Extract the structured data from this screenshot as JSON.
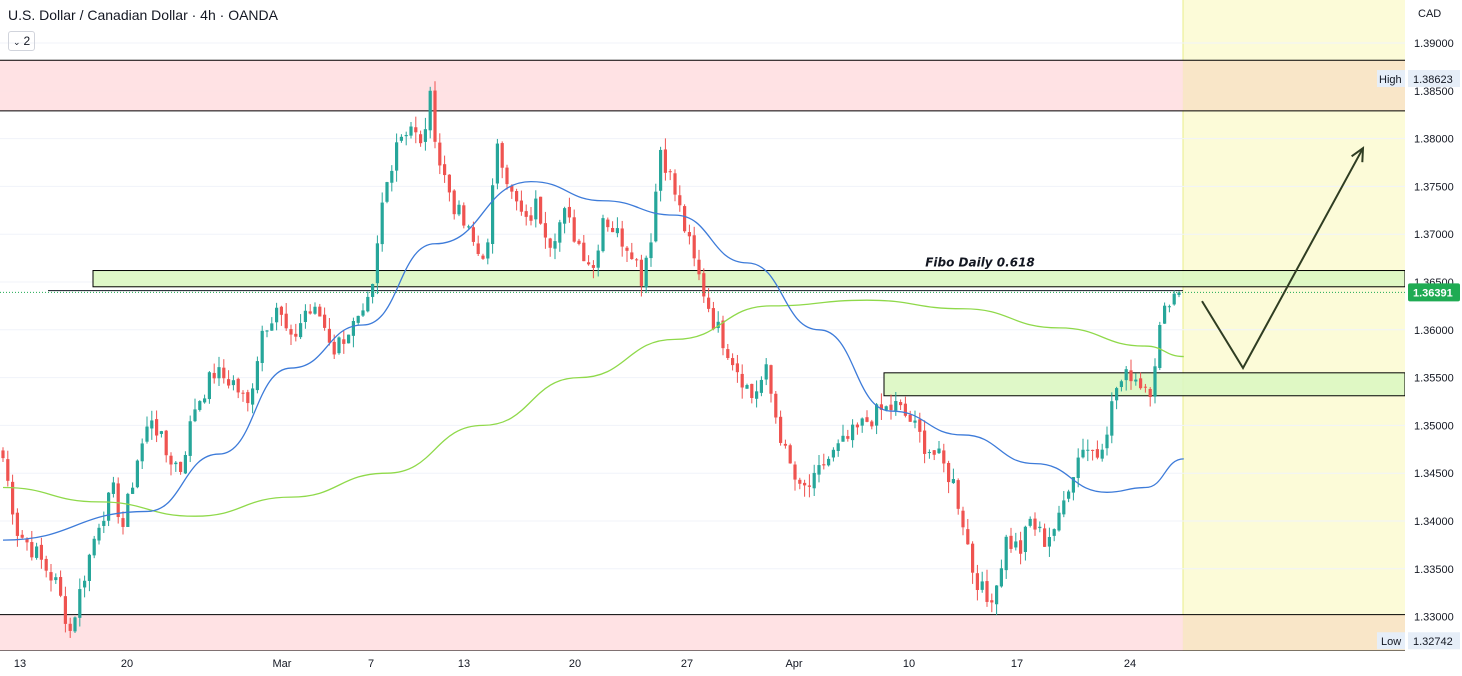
{
  "header": {
    "symbol_title": "U.S. Dollar / Canadian Dollar · 4h · OANDA",
    "indicator_badge": "2"
  },
  "colors": {
    "up": "#26a69a",
    "down": "#ef5350",
    "ma_fast": "#3d7bd9",
    "ma_slow": "#8fd94a",
    "zone_red": "#ffdfe1",
    "zone_green": "#dcf7c2",
    "future_bg": "#fcfbd8",
    "price_label": "#1fab53"
  },
  "chart_data": {
    "type": "candlestick",
    "currency": "CAD",
    "ylim": [
      1.3264,
      1.3945
    ],
    "y_ticks": [
      "1.33000",
      "1.33500",
      "1.34000",
      "1.34500",
      "1.35000",
      "1.35500",
      "1.36000",
      "1.36500",
      "1.37000",
      "1.37500",
      "1.38000",
      "1.38500",
      "1.39000"
    ],
    "x_ticks": [
      "13",
      "20",
      "Mar",
      "7",
      "13",
      "20",
      "27",
      "Apr",
      "10",
      "17",
      "24"
    ],
    "current_price": "1.36391",
    "high_label": "High",
    "high_value": "1.38623",
    "low_label": "Low",
    "low_value": "1.32742",
    "annotation": "Fibo Daily 0.618",
    "zones": [
      {
        "kind": "resistance",
        "from": 1.3829,
        "to": 1.3882
      },
      {
        "kind": "support",
        "from": 1.3264,
        "to": 1.3302
      },
      {
        "kind": "fibo",
        "from": 1.3645,
        "to": 1.3662
      },
      {
        "kind": "demand",
        "from": 1.3531,
        "to": 1.3555
      }
    ],
    "waypoints": [
      [
        0,
        1.3466
      ],
      [
        3,
        1.339
      ],
      [
        7,
        1.3365
      ],
      [
        11,
        1.3335
      ],
      [
        14,
        1.3285
      ],
      [
        17,
        1.3345
      ],
      [
        20,
        1.34
      ],
      [
        23,
        1.343
      ],
      [
        25,
        1.3395
      ],
      [
        28,
        1.3465
      ],
      [
        31,
        1.351
      ],
      [
        34,
        1.347
      ],
      [
        37,
        1.3455
      ],
      [
        40,
        1.352
      ],
      [
        44,
        1.3555
      ],
      [
        48,
        1.3545
      ],
      [
        51,
        1.352
      ],
      [
        54,
        1.36
      ],
      [
        57,
        1.3625
      ],
      [
        60,
        1.3585
      ],
      [
        63,
        1.362
      ],
      [
        66,
        1.3615
      ],
      [
        69,
        1.358
      ],
      [
        72,
        1.36
      ],
      [
        75,
        1.361
      ],
      [
        77,
        1.364
      ],
      [
        79,
        1.373
      ],
      [
        82,
        1.38
      ],
      [
        85,
        1.3815
      ],
      [
        87,
        1.379
      ],
      [
        89,
        1.384
      ],
      [
        91,
        1.3775
      ],
      [
        94,
        1.373
      ],
      [
        96,
        1.371
      ],
      [
        99,
        1.368
      ],
      [
        101,
        1.3685
      ],
      [
        103,
        1.38
      ],
      [
        106,
        1.374
      ],
      [
        109,
        1.371
      ],
      [
        111,
        1.373
      ],
      [
        114,
        1.3695
      ],
      [
        117,
        1.372
      ],
      [
        120,
        1.369
      ],
      [
        123,
        1.3665
      ],
      [
        125,
        1.372
      ],
      [
        128,
        1.37
      ],
      [
        131,
        1.3685
      ],
      [
        133,
        1.3655
      ],
      [
        135,
        1.37
      ],
      [
        137,
        1.379
      ],
      [
        139,
        1.376
      ],
      [
        141,
        1.3725
      ],
      [
        144,
        1.367
      ],
      [
        146,
        1.364
      ],
      [
        148,
        1.361
      ],
      [
        150,
        1.359
      ],
      [
        153,
        1.356
      ],
      [
        156,
        1.353
      ],
      [
        159,
        1.3555
      ],
      [
        161,
        1.351
      ],
      [
        163,
        1.347
      ],
      [
        166,
        1.343
      ],
      [
        169,
        1.344
      ],
      [
        171,
        1.346
      ],
      [
        174,
        1.3475
      ],
      [
        177,
        1.349
      ],
      [
        180,
        1.3505
      ],
      [
        183,
        1.3515
      ],
      [
        186,
        1.352
      ],
      [
        189,
        1.3505
      ],
      [
        192,
        1.348
      ],
      [
        195,
        1.3465
      ],
      [
        198,
        1.344
      ],
      [
        200,
        1.34
      ],
      [
        202,
        1.335
      ],
      [
        205,
        1.3315
      ],
      [
        207,
        1.3335
      ],
      [
        209,
        1.338
      ],
      [
        212,
        1.337
      ],
      [
        214,
        1.34
      ],
      [
        217,
        1.338
      ],
      [
        220,
        1.34
      ],
      [
        222,
        1.344
      ],
      [
        225,
        1.348
      ],
      [
        228,
        1.347
      ],
      [
        230,
        1.35
      ],
      [
        232,
        1.354
      ],
      [
        235,
        1.3555
      ],
      [
        237,
        1.3545
      ],
      [
        239,
        1.354
      ],
      [
        241,
        1.36
      ],
      [
        243,
        1.3635
      ],
      [
        245,
        1.3639
      ]
    ],
    "ma_fast_values": [
      [
        0,
        1.338
      ],
      [
        30,
        1.341
      ],
      [
        45,
        1.347
      ],
      [
        60,
        1.356
      ],
      [
        75,
        1.3605
      ],
      [
        90,
        1.369
      ],
      [
        110,
        1.3755
      ],
      [
        125,
        1.3735
      ],
      [
        140,
        1.372
      ],
      [
        155,
        1.367
      ],
      [
        170,
        1.36
      ],
      [
        185,
        1.3515
      ],
      [
        200,
        1.349
      ],
      [
        215,
        1.346
      ],
      [
        230,
        1.343
      ],
      [
        238,
        1.3435
      ],
      [
        246,
        1.3465
      ]
    ],
    "ma_slow_values": [
      [
        0,
        1.3435
      ],
      [
        20,
        1.342
      ],
      [
        40,
        1.3405
      ],
      [
        60,
        1.3425
      ],
      [
        80,
        1.345
      ],
      [
        100,
        1.35
      ],
      [
        120,
        1.355
      ],
      [
        140,
        1.359
      ],
      [
        160,
        1.3625
      ],
      [
        180,
        1.3631
      ],
      [
        200,
        1.3622
      ],
      [
        220,
        1.3602
      ],
      [
        238,
        1.3583
      ],
      [
        246,
        1.3572
      ]
    ],
    "projection": [
      [
        1.363
      ],
      [
        1.356
      ],
      [
        1.379
      ]
    ]
  }
}
